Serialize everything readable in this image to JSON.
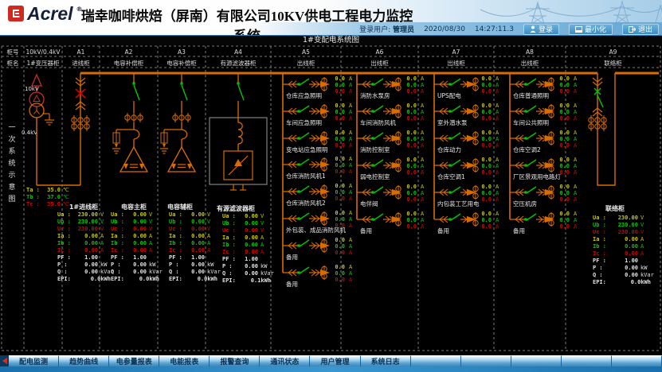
{
  "header": {
    "logo_text": "Acrel",
    "logo_reg": "®",
    "title": "瑞幸咖啡烘焙（屏南）有限公司10KV供电工程电力监控系统",
    "user_label": "登录用户:",
    "user_name": "管理员",
    "date": "2020/08/30",
    "time": "14:27:11.3",
    "buttons": {
      "login": "登录",
      "minimize": "最小化",
      "exit": "退出"
    }
  },
  "subheader": {
    "title": "1#变配电系统图"
  },
  "sidebar": {
    "row1_label": "柜号",
    "row2_label": "柜名",
    "vertical_title": "一次系统示意图"
  },
  "grid": {
    "columns": [
      {
        "id": "10kV/0.4kV",
        "name": "1#变压器柜"
      },
      {
        "id": "A1",
        "name": "进线柜"
      },
      {
        "id": "A2",
        "name": "电容补偿柜"
      },
      {
        "id": "A3",
        "name": "电容补偿柜"
      },
      {
        "id": "A4",
        "name": "有源滤波器柜"
      },
      {
        "id": "A5",
        "name": "出线柜"
      },
      {
        "id": "A6",
        "name": "出线柜"
      },
      {
        "id": "A7",
        "name": "出线柜"
      },
      {
        "id": "A8",
        "name": "出线柜"
      },
      {
        "id": "A9",
        "name": "联络柜"
      }
    ]
  },
  "transformer": {
    "hv_label": "10kV",
    "lv_label": "0.4kV",
    "temps": [
      {
        "label": "Ta :",
        "value": "35.0",
        "unit": "℃",
        "color": "#c8c800"
      },
      {
        "label": "Tb :",
        "value": "37.0",
        "unit": "℃",
        "color": "#00c800"
      },
      {
        "label": "Tc :",
        "value": "35.0",
        "unit": "℃",
        "color": "#d40000"
      }
    ]
  },
  "feeders": {
    "unit": "A",
    "phase_currents": [
      "0.0",
      "0.0",
      "0.0"
    ],
    "phase_colors": [
      "#c8c800",
      "#00c800",
      "#d40000"
    ],
    "columns": {
      "A5": [
        "仓库应急照明",
        "车间应急照明",
        "变电站应急照明",
        "仓库消防风机1",
        "仓库消防风机2",
        "外包装、成品消防风机",
        "备用",
        "备用"
      ],
      "A6": [
        "消防水泵房",
        "车间消防风机",
        "消防控制室",
        "弱电控制室",
        "电伴阀",
        "备用"
      ],
      "A7": [
        "UPS配电",
        "室外潜水泵",
        "仓库动力",
        "仓库空调1",
        "内包装工艺用电",
        "备用"
      ],
      "A8": [
        "仓库普通照明",
        "车间公共照明",
        "仓库空调2",
        "厂区景观用电路灯",
        "空压机房",
        "备用"
      ]
    }
  },
  "panels": [
    {
      "title": "1#进线柜",
      "rows": [
        {
          "label": "Ua :",
          "value": "230.00",
          "unit": "V",
          "color": "#c8c800"
        },
        {
          "label": "Ub :",
          "value": "230.00",
          "unit": "V",
          "color": "#00c800"
        },
        {
          "label": "Uc :",
          "value": "230.00",
          "unit": "V",
          "color": "#d40000"
        },
        {
          "label": "Ia :",
          "value": "0.00",
          "unit": "A",
          "color": "#c8c800"
        },
        {
          "label": "Ib :",
          "value": "0.00",
          "unit": "A",
          "color": "#00c800"
        },
        {
          "label": "Ic :",
          "value": "0.00",
          "unit": "A",
          "color": "#d40000"
        },
        {
          "label": "PF :",
          "value": "1.00",
          "unit": "",
          "color": "#e0e0e0"
        },
        {
          "label": "P :",
          "value": "0.00",
          "unit": "kW",
          "color": "#e0e0e0"
        },
        {
          "label": "Q :",
          "value": "0.00",
          "unit": "kVar",
          "color": "#e0e0e0"
        },
        {
          "label": "EPI:",
          "value": "0.0kWh",
          "unit": "",
          "color": "#e0e0e0"
        }
      ]
    },
    {
      "title": "电容主柜",
      "rows": [
        {
          "label": "Ua :",
          "value": "0.00",
          "unit": "V",
          "color": "#c8c800"
        },
        {
          "label": "Ub :",
          "value": "0.00",
          "unit": "V",
          "color": "#00c800"
        },
        {
          "label": "Uc :",
          "value": "0.00",
          "unit": "V",
          "color": "#d40000"
        },
        {
          "label": "Ia :",
          "value": "0.00",
          "unit": "A",
          "color": "#c8c800"
        },
        {
          "label": "Ib :",
          "value": "0.00",
          "unit": "A",
          "color": "#00c800"
        },
        {
          "label": "Ic :",
          "value": "0.00",
          "unit": "A",
          "color": "#d40000"
        },
        {
          "label": "PF :",
          "value": "1.00",
          "unit": "",
          "color": "#e0e0e0"
        },
        {
          "label": "P :",
          "value": "0.00",
          "unit": "kW",
          "color": "#e0e0e0"
        },
        {
          "label": "Q :",
          "value": "0.00",
          "unit": "kVar",
          "color": "#e0e0e0"
        },
        {
          "label": "EPI:",
          "value": "0.0kWh",
          "unit": "",
          "color": "#e0e0e0"
        }
      ]
    },
    {
      "title": "电容辅柜",
      "rows": [
        {
          "label": "Ua :",
          "value": "0.00",
          "unit": "V",
          "color": "#c8c800"
        },
        {
          "label": "Ub :",
          "value": "0.00",
          "unit": "V",
          "color": "#00c800"
        },
        {
          "label": "Uc :",
          "value": "0.00",
          "unit": "V",
          "color": "#d40000"
        },
        {
          "label": "Ia :",
          "value": "0.00",
          "unit": "A",
          "color": "#c8c800"
        },
        {
          "label": "Ib :",
          "value": "0.00",
          "unit": "A",
          "color": "#00c800"
        },
        {
          "label": "Ic :",
          "value": "0.00",
          "unit": "A",
          "color": "#d40000"
        },
        {
          "label": "PF :",
          "value": "1.00",
          "unit": "",
          "color": "#e0e0e0"
        },
        {
          "label": "P :",
          "value": "0.00",
          "unit": "kW",
          "color": "#e0e0e0"
        },
        {
          "label": "Q :",
          "value": "0.00",
          "unit": "kVar",
          "color": "#e0e0e0"
        },
        {
          "label": "EPI:",
          "value": "0.0kWh",
          "unit": "",
          "color": "#e0e0e0"
        }
      ]
    },
    {
      "title": "有源滤波器柜",
      "rows": [
        {
          "label": "Ua :",
          "value": "0.00",
          "unit": "V",
          "color": "#c8c800"
        },
        {
          "label": "Ub :",
          "value": "0.00",
          "unit": "V",
          "color": "#00c800"
        },
        {
          "label": "Uc :",
          "value": "0.00",
          "unit": "V",
          "color": "#d40000"
        },
        {
          "label": "Ia :",
          "value": "0.00",
          "unit": "A",
          "color": "#c8c800"
        },
        {
          "label": "Ib :",
          "value": "0.00",
          "unit": "A",
          "color": "#00c800"
        },
        {
          "label": "Ic :",
          "value": "0.00",
          "unit": "A",
          "color": "#d40000"
        },
        {
          "label": "PF :",
          "value": "1.00",
          "unit": "",
          "color": "#e0e0e0"
        },
        {
          "label": "P :",
          "value": "0.00",
          "unit": "kW",
          "color": "#e0e0e0"
        },
        {
          "label": "Q :",
          "value": "0.00",
          "unit": "kVar",
          "color": "#e0e0e0"
        },
        {
          "label": "EPI:",
          "value": "0.1kWh",
          "unit": "",
          "color": "#e0e0e0"
        }
      ]
    },
    {
      "title": "联络柜",
      "rows": [
        {
          "label": "Ua :",
          "value": "230.00",
          "unit": "V",
          "color": "#c8c800"
        },
        {
          "label": "Ub :",
          "value": "230.00",
          "unit": "V",
          "color": "#00c800"
        },
        {
          "label": "Uc :",
          "value": "230.00",
          "unit": "V",
          "color": "#d40000"
        },
        {
          "label": "Ia :",
          "value": "0.00",
          "unit": "A",
          "color": "#c8c800"
        },
        {
          "label": "Ib :",
          "value": "0.00",
          "unit": "A",
          "color": "#00c800"
        },
        {
          "label": "Ic :",
          "value": "0.00",
          "unit": "A",
          "color": "#d40000"
        },
        {
          "label": "PF :",
          "value": "1.00",
          "unit": "",
          "color": "#e0e0e0"
        },
        {
          "label": "P :",
          "value": "0.00",
          "unit": "kW",
          "color": "#e0e0e0"
        },
        {
          "label": "Q :",
          "value": "0.00",
          "unit": "kVar",
          "color": "#e0e0e0"
        },
        {
          "label": "EPI:",
          "value": "0.0kWh",
          "unit": "",
          "color": "#e0e0e0"
        }
      ]
    }
  ],
  "nav": {
    "tabs": [
      "配电监测",
      "趋势曲线",
      "电参量报表",
      "电能报表",
      "报警查询",
      "通讯状态",
      "用户管理",
      "系统日志"
    ]
  }
}
